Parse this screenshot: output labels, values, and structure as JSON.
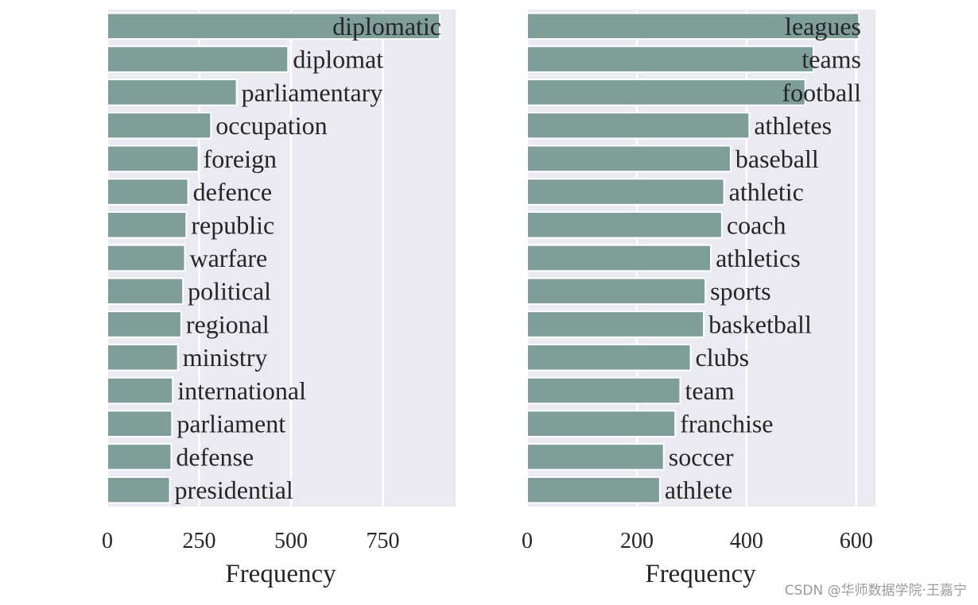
{
  "chart_data": [
    {
      "type": "bar",
      "orientation": "horizontal",
      "categories": [
        "diplomatic",
        "diplomat",
        "parliamentary",
        "occupation",
        "foreign",
        "defence",
        "republic",
        "warfare",
        "political",
        "regional",
        "ministry",
        "international",
        "parliament",
        "defense",
        "presidential"
      ],
      "values": [
        905,
        492,
        352,
        282,
        248,
        220,
        215,
        211,
        206,
        201,
        192,
        178,
        176,
        174,
        170
      ],
      "xlabel": "Frequency",
      "xlim": [
        0,
        948
      ],
      "xticks": [
        0,
        250,
        500,
        750
      ],
      "grid": true,
      "colors": {
        "bar": "#7f9e99",
        "bar_edge": "#ffffff",
        "background": "#eaeaf2",
        "grid": "#ffffff"
      }
    },
    {
      "type": "bar",
      "orientation": "horizontal",
      "categories": [
        "leagues",
        "teams",
        "football",
        "athletes",
        "baseball",
        "athletic",
        "coach",
        "athletics",
        "sports",
        "basketball",
        "clubs",
        "team",
        "franchise",
        "soccer",
        "athlete"
      ],
      "values": [
        605,
        522,
        507,
        405,
        371,
        359,
        355,
        335,
        325,
        322,
        298,
        279,
        270,
        249,
        242
      ],
      "xlabel": "Frequency",
      "xlim": [
        0,
        635
      ],
      "xticks": [
        0,
        200,
        400,
        600
      ],
      "grid": true,
      "colors": {
        "bar": "#7f9e99",
        "bar_edge": "#ffffff",
        "background": "#eaeaf2",
        "grid": "#ffffff"
      }
    }
  ],
  "watermark": "CSDN @华师数据学院·王嘉宁"
}
